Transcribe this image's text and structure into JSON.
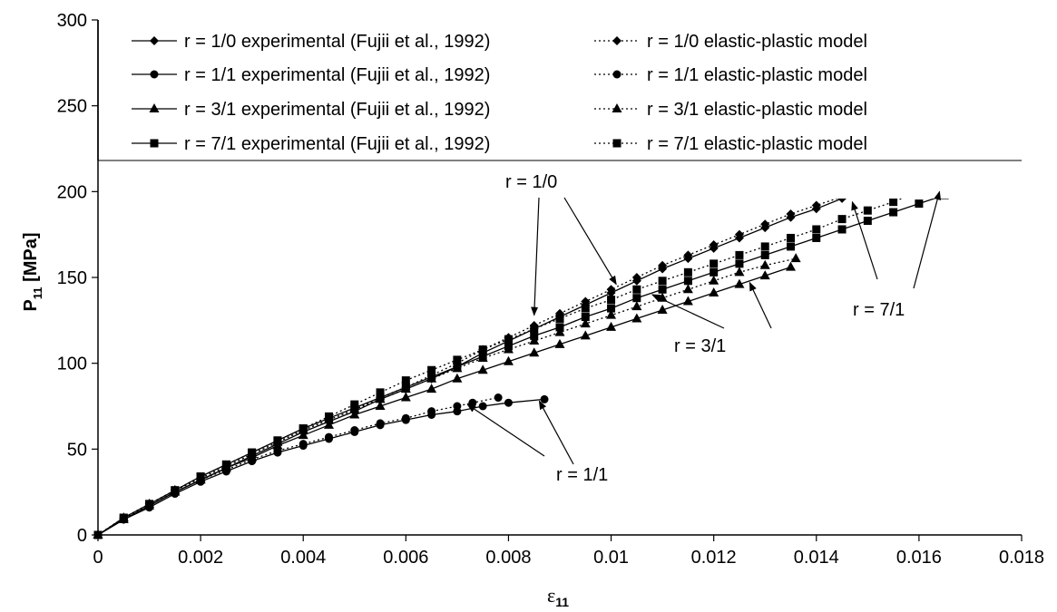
{
  "chart_data": {
    "type": "line",
    "xlabel": "ε",
    "xlabel_sub": "11",
    "ylabel_main": "P",
    "ylabel_sub": "11",
    "ylabel_unit": " [MPa]",
    "xlim": [
      0,
      0.018
    ],
    "ylim": [
      0,
      300
    ],
    "x_ticks": [
      0,
      0.002,
      0.004,
      0.006,
      0.008,
      0.01,
      0.012,
      0.014,
      0.016,
      0.018
    ],
    "x_tick_labels": [
      "0",
      "0.002",
      "0.004",
      "0.006",
      "0.008",
      "0.01",
      "0.012",
      "0.014",
      "0.016",
      "0.018"
    ],
    "y_ticks": [
      0,
      50,
      100,
      150,
      200,
      250,
      300
    ],
    "y_tick_labels": [
      "0",
      "50",
      "100",
      "150",
      "200",
      "250",
      "300"
    ],
    "grid": false,
    "legend_position": "top",
    "series": [
      {
        "name": "r = 1/0 experimental (Fujii et al., 1992)",
        "marker": "diamond",
        "style": "solid",
        "x": [
          0,
          0.0005,
          0.001,
          0.0015,
          0.002,
          0.0025,
          0.003,
          0.0035,
          0.004,
          0.0045,
          0.005,
          0.0055,
          0.006,
          0.0065,
          0.007,
          0.0075,
          0.008,
          0.0085,
          0.009,
          0.0095,
          0.01,
          0.0105,
          0.011,
          0.0115,
          0.012,
          0.0125,
          0.013,
          0.0135,
          0.014,
          0.0145,
          0.015,
          0.0155,
          0.016
        ],
        "y": [
          0,
          9,
          17,
          25,
          32,
          39,
          46,
          53,
          60,
          66,
          72,
          79,
          85,
          91,
          98,
          106,
          113,
          120,
          127,
          134,
          141,
          148,
          155,
          161,
          167,
          173,
          179,
          185,
          190,
          196,
          201,
          206,
          211
        ]
      },
      {
        "name": "r = 1/0 elastic-plastic model",
        "marker": "diamond",
        "style": "dotted",
        "x": [
          0,
          0.0005,
          0.001,
          0.0015,
          0.002,
          0.0025,
          0.003,
          0.0035,
          0.004,
          0.0045,
          0.005,
          0.0055,
          0.006,
          0.0065,
          0.007,
          0.0075,
          0.008,
          0.0085,
          0.009,
          0.0095,
          0.01,
          0.0105,
          0.011,
          0.0115,
          0.012,
          0.0125,
          0.013,
          0.0135,
          0.014,
          0.0145,
          0.015,
          0.0155,
          0.0159
        ],
        "y": [
          0,
          10,
          18,
          26,
          33,
          40,
          47,
          54,
          61,
          67,
          73,
          80,
          86,
          93,
          100,
          108,
          115,
          122,
          129,
          136,
          143,
          150,
          157,
          163,
          169,
          175,
          181,
          187,
          192,
          197,
          202,
          207,
          211
        ]
      },
      {
        "name": "r = 1/1 experimental (Fujii et al., 1992)",
        "marker": "circle",
        "style": "solid",
        "x": [
          0,
          0.0005,
          0.001,
          0.0015,
          0.002,
          0.0025,
          0.003,
          0.0035,
          0.004,
          0.0045,
          0.005,
          0.0055,
          0.006,
          0.0065,
          0.007,
          0.0075,
          0.008,
          0.0087
        ],
        "y": [
          0,
          9,
          16,
          24,
          31,
          37,
          43,
          48,
          52,
          56,
          60,
          64,
          67,
          70,
          72,
          75,
          77,
          79
        ]
      },
      {
        "name": "r = 1/1 elastic-plastic model",
        "marker": "circle",
        "style": "dotted",
        "x": [
          0,
          0.0005,
          0.001,
          0.0015,
          0.002,
          0.0025,
          0.003,
          0.0035,
          0.004,
          0.0045,
          0.005,
          0.0055,
          0.006,
          0.0065,
          0.007,
          0.0073,
          0.0078
        ],
        "y": [
          0,
          10,
          17,
          25,
          32,
          38,
          44,
          49,
          53,
          57,
          61,
          65,
          68,
          72,
          75,
          77,
          80
        ]
      },
      {
        "name": "r = 3/1 experimental (Fujii et al., 1992)",
        "marker": "triangle",
        "style": "solid",
        "x": [
          0,
          0.0005,
          0.001,
          0.0015,
          0.002,
          0.0025,
          0.003,
          0.0035,
          0.004,
          0.0045,
          0.005,
          0.0055,
          0.006,
          0.0065,
          0.007,
          0.0075,
          0.008,
          0.0085,
          0.009,
          0.0095,
          0.01,
          0.0105,
          0.011,
          0.0115,
          0.012,
          0.0125,
          0.013,
          0.0135
        ],
        "y": [
          0,
          9,
          17,
          25,
          32,
          39,
          45,
          52,
          58,
          64,
          70,
          75,
          80,
          85,
          91,
          96,
          101,
          106,
          111,
          116,
          121,
          126,
          131,
          136,
          141,
          146,
          151,
          156
        ]
      },
      {
        "name": "r = 3/1 elastic-plastic model",
        "marker": "triangle",
        "style": "dotted",
        "x": [
          0,
          0.0005,
          0.001,
          0.0015,
          0.002,
          0.0025,
          0.003,
          0.0035,
          0.004,
          0.0045,
          0.005,
          0.0055,
          0.006,
          0.0065,
          0.007,
          0.0075,
          0.008,
          0.0085,
          0.009,
          0.0095,
          0.01,
          0.0105,
          0.011,
          0.0115,
          0.012,
          0.0125,
          0.013,
          0.0136
        ],
        "y": [
          0,
          10,
          18,
          26,
          33,
          40,
          47,
          54,
          61,
          67,
          73,
          79,
          85,
          91,
          97,
          103,
          108,
          113,
          118,
          123,
          128,
          133,
          138,
          143,
          148,
          153,
          157,
          161
        ]
      },
      {
        "name": "r = 7/1 experimental (Fujii et al., 1992)",
        "marker": "square",
        "style": "solid",
        "x": [
          0,
          0.0005,
          0.001,
          0.0015,
          0.002,
          0.0025,
          0.003,
          0.0035,
          0.004,
          0.0045,
          0.005,
          0.0055,
          0.006,
          0.0065,
          0.007,
          0.0075,
          0.008,
          0.0085,
          0.009,
          0.0095,
          0.01,
          0.0105,
          0.011,
          0.0115,
          0.012,
          0.0125,
          0.013,
          0.0135,
          0.014,
          0.0145,
          0.015,
          0.0155,
          0.016,
          0.0165,
          0.017,
          0.0174
        ],
        "y": [
          0,
          10,
          18,
          26,
          34,
          41,
          48,
          55,
          62,
          68,
          74,
          80,
          86,
          92,
          98,
          104,
          110,
          116,
          121,
          127,
          132,
          138,
          143,
          148,
          153,
          158,
          163,
          168,
          173,
          178,
          183,
          188,
          193,
          198,
          203,
          209
        ]
      },
      {
        "name": "r = 7/1 elastic-plastic model",
        "marker": "square",
        "style": "dotted",
        "x": [
          0,
          0.0005,
          0.001,
          0.0015,
          0.002,
          0.0025,
          0.003,
          0.0035,
          0.004,
          0.0045,
          0.005,
          0.0055,
          0.006,
          0.0065,
          0.007,
          0.0075,
          0.008,
          0.0085,
          0.009,
          0.0095,
          0.01,
          0.0105,
          0.011,
          0.0115,
          0.012,
          0.0125,
          0.013,
          0.0135,
          0.014,
          0.0145,
          0.015,
          0.0155,
          0.016,
          0.0166
        ],
        "y": [
          0,
          10,
          18,
          26,
          34,
          41,
          48,
          55,
          62,
          69,
          76,
          83,
          90,
          96,
          102,
          108,
          114,
          120,
          126,
          132,
          137,
          143,
          148,
          153,
          158,
          163,
          168,
          173,
          178,
          184,
          189,
          194,
          200,
          210
        ]
      }
    ],
    "annotations": [
      {
        "text": "r = 1/0",
        "arrow_targets": [
          [
            0.0085,
            128
          ],
          [
            0.0101,
            146
          ]
        ]
      },
      {
        "text": "r = 1/1",
        "arrow_targets": [
          [
            0.0072,
            76
          ],
          [
            0.0086,
            78
          ]
        ]
      },
      {
        "text": "r = 3/1",
        "arrow_targets": [
          [
            0.0108,
            140
          ],
          [
            0.0127,
            147
          ]
        ]
      },
      {
        "text": "r = 7/1",
        "arrow_targets": [
          [
            0.0147,
            194
          ],
          [
            0.0164,
            200
          ]
        ]
      }
    ]
  }
}
